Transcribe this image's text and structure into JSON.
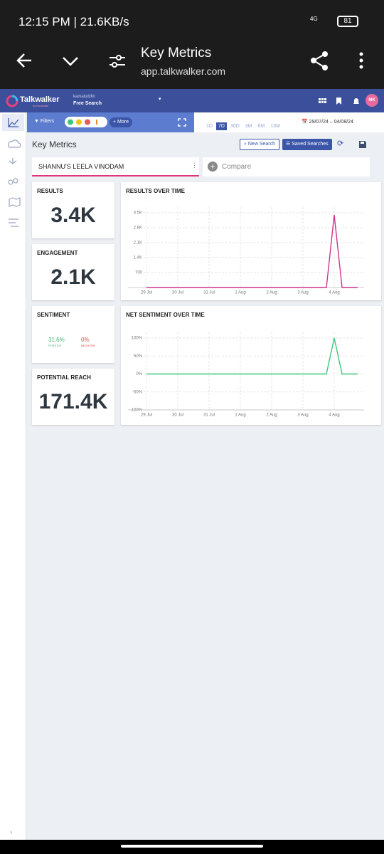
{
  "status_bar": {
    "text": "12:15 PM | 21.6KB/s",
    "network": "4G",
    "battery": "81"
  },
  "browser": {
    "title": "Key Metrics",
    "url": "app.talkwalker.com"
  },
  "app_header": {
    "brand": "Talkwalker",
    "brand_sub": "by Hootsuite",
    "user": "kamaluddin",
    "project": "Free Search",
    "avatar": "MK"
  },
  "toolbar": {
    "filters": "Filters",
    "more": "More",
    "ranges": [
      "1D",
      "7D",
      "30D",
      "3M",
      "6M",
      "13M"
    ],
    "active_range": "7D",
    "date_range": "29/07/24 – 04/08/24"
  },
  "page": {
    "title": "Key Metrics",
    "new_search": "New Search",
    "saved_searches": "Saved Searches",
    "search_tab": "SHANNU'S LEELA VINODAM",
    "compare": "Compare"
  },
  "cards": [
    {
      "label": "RESULTS",
      "value": "3.4K"
    },
    {
      "label": "ENGAGEMENT",
      "value": "2.1K"
    },
    {
      "label": "POTENTIAL REACH",
      "value": "171.4K"
    }
  ],
  "sentiment": {
    "label": "SENTIMENT",
    "positive": "31.6%",
    "positive_label": "POSITIVE",
    "negative": "0%",
    "negative_label": "NEGATIVE"
  },
  "charts": [
    {
      "type": "line",
      "title": "RESULTS OVER TIME",
      "categories": [
        "29 Jul",
        null,
        null,
        null,
        "30 Jul",
        null,
        null,
        null,
        "31 Jul",
        null,
        null,
        null,
        "1 Aug",
        null,
        null,
        null,
        "2 Aug",
        null,
        null,
        null,
        "3 Aug",
        null,
        null,
        null,
        "4 Aug",
        null,
        null,
        null
      ],
      "series": [
        {
          "color": "#d1338f",
          "values": [
            0,
            0,
            0,
            0,
            0,
            0,
            0,
            0,
            0,
            0,
            0,
            0,
            0,
            0,
            0,
            0,
            0,
            0,
            0,
            0,
            0,
            0,
            0,
            0,
            3400,
            0,
            0,
            0
          ]
        }
      ],
      "ylim": [
        0,
        3500
      ],
      "yticks": [
        700,
        {
          "value": 1400,
          "label": "1.4K"
        },
        {
          "value": 2100,
          "label": "2.1K"
        },
        {
          "value": 2800,
          "label": "2.8K"
        },
        {
          "value": 3500,
          "label": "3.5K"
        }
      ],
      "grid": true
    },
    {
      "type": "line",
      "title": "NET SENTIMENT OVER TIME",
      "categories": [
        "29 Jul",
        null,
        null,
        null,
        "30 Jul",
        null,
        null,
        null,
        "31 Jul",
        null,
        null,
        null,
        "1 Aug",
        null,
        null,
        null,
        "2 Aug",
        null,
        null,
        null,
        "3 Aug",
        null,
        null,
        null,
        "4 Aug",
        null,
        null,
        null
      ],
      "series": [
        {
          "color": "#3cc77a",
          "values": [
            0,
            0,
            0,
            0,
            0,
            0,
            0,
            0,
            0,
            0,
            0,
            0,
            0,
            0,
            0,
            0,
            0,
            0,
            0,
            0,
            0,
            0,
            0,
            0,
            100,
            0,
            0,
            0
          ]
        }
      ],
      "ylim": [
        -100,
        100
      ],
      "yticks": [
        {
          "value": -100,
          "label": "-100%"
        },
        {
          "value": -50,
          "label": "-50%"
        },
        {
          "value": 0,
          "label": "0%"
        },
        {
          "value": 50,
          "label": "50%"
        },
        {
          "value": 100,
          "label": "100%"
        }
      ],
      "grid": true
    }
  ]
}
